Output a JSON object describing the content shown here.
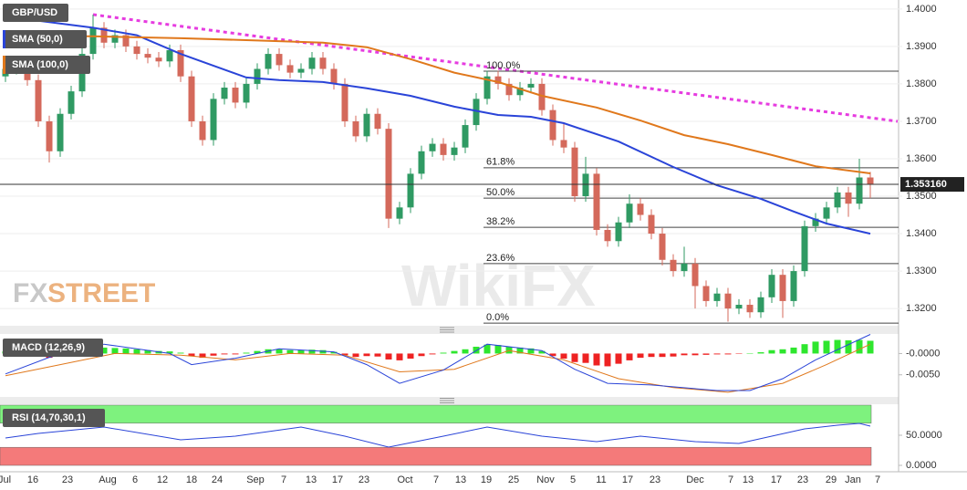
{
  "chart_data": [
    {
      "type": "candlestick",
      "title": "GBP/USD",
      "candles": {
        "open": [
          1.382,
          1.384,
          1.386,
          1.381,
          1.37,
          1.362,
          1.372,
          1.378,
          1.388,
          1.395,
          1.391,
          1.393,
          1.39,
          1.388,
          1.387,
          1.386,
          1.389,
          1.382,
          1.37,
          1.365,
          1.376,
          1.379,
          1.375,
          1.38,
          1.384,
          1.388,
          1.385,
          1.383,
          1.384,
          1.387,
          1.384,
          1.38,
          1.37,
          1.366,
          1.372,
          1.368,
          1.344,
          1.347,
          1.356,
          1.362,
          1.364,
          1.361,
          1.363,
          1.369,
          1.376,
          1.382,
          1.38,
          1.377,
          1.379,
          1.38,
          1.373,
          1.365,
          1.363,
          1.35,
          1.356,
          1.341,
          1.338,
          1.343,
          1.348,
          1.345,
          1.34,
          1.333,
          1.33,
          1.332,
          1.326,
          1.322,
          1.324,
          1.32,
          1.321,
          1.319,
          1.323,
          1.329,
          1.322,
          1.33,
          1.342,
          1.344,
          1.347,
          1.351,
          1.348,
          1.355
        ],
        "high": [
          1.3855,
          1.3875,
          1.3875,
          1.3825,
          1.3715,
          1.3735,
          1.3795,
          1.3895,
          1.3985,
          1.3965,
          1.3945,
          1.3945,
          1.3915,
          1.3895,
          1.3885,
          1.3905,
          1.3905,
          1.3835,
          1.3715,
          1.3775,
          1.3805,
          1.3805,
          1.3815,
          1.3855,
          1.3895,
          1.3895,
          1.3865,
          1.3855,
          1.3885,
          1.3885,
          1.3855,
          1.3815,
          1.3715,
          1.3735,
          1.3735,
          1.3695,
          1.3485,
          1.3575,
          1.3635,
          1.3655,
          1.3655,
          1.3645,
          1.3705,
          1.3775,
          1.3835,
          1.3835,
          1.3815,
          1.3805,
          1.3815,
          1.3815,
          1.3745,
          1.3695,
          1.3645,
          1.3605,
          1.3575,
          1.3425,
          1.3445,
          1.3505,
          1.3495,
          1.3465,
          1.3415,
          1.3345,
          1.3365,
          1.3335,
          1.3275,
          1.3255,
          1.3255,
          1.3225,
          1.3225,
          1.3245,
          1.3305,
          1.3305,
          1.3315,
          1.3435,
          1.3455,
          1.3485,
          1.3525,
          1.3525,
          1.36,
          1.3565
        ],
        "low": [
          1.3805,
          1.3825,
          1.3795,
          1.3685,
          1.359,
          1.3605,
          1.3705,
          1.3765,
          1.3865,
          1.3895,
          1.3895,
          1.3885,
          1.3865,
          1.3855,
          1.3845,
          1.3845,
          1.3805,
          1.3685,
          1.3635,
          1.3635,
          1.3745,
          1.3735,
          1.3735,
          1.3785,
          1.3825,
          1.3835,
          1.3815,
          1.3815,
          1.3825,
          1.3825,
          1.3785,
          1.3685,
          1.3645,
          1.3645,
          1.3665,
          1.3415,
          1.3425,
          1.3455,
          1.3545,
          1.3605,
          1.3595,
          1.3595,
          1.3615,
          1.3675,
          1.3745,
          1.3785,
          1.3755,
          1.3755,
          1.3775,
          1.3715,
          1.3635,
          1.3615,
          1.3485,
          1.3485,
          1.3395,
          1.3365,
          1.3365,
          1.3415,
          1.3435,
          1.3385,
          1.3315,
          1.3285,
          1.3285,
          1.32,
          1.3205,
          1.3205,
          1.3165,
          1.3185,
          1.3175,
          1.3175,
          1.3215,
          1.3175,
          1.3205,
          1.3285,
          1.3405,
          1.3425,
          1.3455,
          1.3445,
          1.3465,
          1.3495
        ],
        "close": [
          1.384,
          1.386,
          1.381,
          1.37,
          1.362,
          1.372,
          1.378,
          1.388,
          1.395,
          1.391,
          1.393,
          1.39,
          1.388,
          1.387,
          1.386,
          1.389,
          1.382,
          1.37,
          1.365,
          1.376,
          1.379,
          1.375,
          1.38,
          1.384,
          1.388,
          1.385,
          1.383,
          1.384,
          1.387,
          1.384,
          1.38,
          1.37,
          1.366,
          1.372,
          1.368,
          1.344,
          1.347,
          1.356,
          1.362,
          1.364,
          1.361,
          1.363,
          1.369,
          1.376,
          1.382,
          1.38,
          1.377,
          1.379,
          1.38,
          1.373,
          1.365,
          1.363,
          1.35,
          1.356,
          1.341,
          1.338,
          1.343,
          1.348,
          1.345,
          1.34,
          1.333,
          1.33,
          1.332,
          1.326,
          1.322,
          1.324,
          1.32,
          1.321,
          1.319,
          1.323,
          1.329,
          1.322,
          1.33,
          1.342,
          1.344,
          1.347,
          1.351,
          1.348,
          1.355,
          1.3532
        ]
      },
      "up_color": "#2f9a63",
      "down_color": "#d4695b",
      "ylim": [
        1.3154,
        1.4024
      ],
      "yticks": [
        {
          "value": 1.4,
          "label": "1.4000"
        },
        {
          "value": 1.39,
          "label": "1.3900"
        },
        {
          "value": 1.38,
          "label": "1.3800"
        },
        {
          "value": 1.37,
          "label": "1.3700"
        },
        {
          "value": 1.36,
          "label": "1.3600"
        },
        {
          "value": 1.35,
          "label": "1.3500"
        },
        {
          "value": 1.34,
          "label": "1.3400"
        },
        {
          "value": 1.33,
          "label": "1.3300"
        },
        {
          "value": 1.32,
          "label": "1.3200"
        }
      ],
      "grid": true,
      "series": [
        {
          "name": "SMA (50,0)",
          "color": "#2a44d8",
          "x": [
            0,
            8,
            12,
            16,
            22,
            25,
            29,
            33,
            37,
            41,
            45,
            48,
            51,
            56,
            61,
            65,
            69,
            72,
            75,
            79
          ],
          "values": [
            1.398,
            1.395,
            1.393,
            1.388,
            1.3817,
            1.381,
            1.3805,
            1.3788,
            1.3768,
            1.3739,
            1.3717,
            1.3712,
            1.3695,
            1.3646,
            1.3578,
            1.3529,
            1.3493,
            1.3459,
            1.3427,
            1.34
          ]
        },
        {
          "name": "SMA (100,0)",
          "color": "#e0781c",
          "x": [
            0,
            8,
            16,
            24,
            29,
            33,
            37,
            41,
            45,
            49,
            54,
            58,
            62,
            66,
            70,
            74,
            79
          ],
          "values": [
            1.3927,
            1.3927,
            1.3922,
            1.3915,
            1.391,
            1.3898,
            1.3866,
            1.383,
            1.3805,
            1.3768,
            1.3737,
            1.3702,
            1.3663,
            1.3639,
            1.361,
            1.358,
            1.3561
          ]
        }
      ],
      "trendline": {
        "color": "#e63ce0",
        "x": [
          8,
          81.5
        ],
        "values": [
          1.3985,
          1.37
        ]
      },
      "fibonacci": [
        {
          "label": "100.0%",
          "value": 1.3834
        },
        {
          "label": "61.8%",
          "value": 1.3576
        },
        {
          "label": "50.0%",
          "value": 1.3495
        },
        {
          "label": "38.2%",
          "value": 1.3417
        },
        {
          "label": "23.6%",
          "value": 1.332
        },
        {
          "label": "0.0%",
          "value": 1.3161
        }
      ],
      "last_price": {
        "value": 1.35316,
        "label": "1.353160"
      },
      "watermarks": [
        "FX",
        "STREET",
        "WikiFX"
      ]
    },
    {
      "type": "macd",
      "title": "MACD (12,26,9)",
      "histogram": {
        "up_color": "#2ee62e",
        "down_color": "#ee2222",
        "values": [
          0.0005,
          0.0008,
          0.0003,
          -0.0006,
          -0.001,
          -0.0006,
          0.0002,
          0.0008,
          0.0012,
          0.0014,
          0.0013,
          0.0012,
          0.001,
          0.0008,
          0.0006,
          0.0005,
          0.0002,
          -0.0006,
          -0.001,
          -0.0005,
          -0.0002,
          -0.0002,
          0.0002,
          0.0006,
          0.001,
          0.001,
          0.0008,
          0.0008,
          0.0009,
          0.0008,
          0.0004,
          -0.0004,
          -0.0008,
          -0.0006,
          -0.0007,
          -0.0014,
          -0.0016,
          -0.0012,
          -0.0006,
          -0.0002,
          0.0002,
          0.0006,
          0.001,
          0.0016,
          0.0021,
          0.002,
          0.0016,
          0.0014,
          0.0012,
          0.0006,
          -0.0006,
          -0.0012,
          -0.002,
          -0.0022,
          -0.0028,
          -0.003,
          -0.0024,
          -0.0016,
          -0.001,
          -0.0008,
          -0.0008,
          -0.0007,
          -0.0004,
          -0.0004,
          -0.0003,
          -0.0002,
          -0.0002,
          -0.0001,
          0.0001,
          0.0003,
          0.0008,
          0.001,
          0.0014,
          0.0022,
          0.0028,
          0.003,
          0.0032,
          0.0031,
          0.0032,
          0.003
        ]
      },
      "macd_line": {
        "color": "#2a44d8",
        "x": [
          0,
          4,
          9,
          15,
          17,
          21,
          25,
          30,
          33,
          36,
          40,
          44,
          49,
          52,
          55,
          59,
          65,
          68,
          71,
          74,
          79
        ],
        "values": [
          -0.0048,
          -0.0009,
          0.0022,
          0.0,
          -0.0026,
          -0.0011,
          0.0011,
          0.0004,
          -0.0026,
          -0.007,
          -0.0039,
          0.0022,
          0.0007,
          -0.0037,
          -0.007,
          -0.0074,
          -0.0087,
          -0.0087,
          -0.0059,
          -0.0015,
          0.0045
        ]
      },
      "signal_line": {
        "color": "#e0781c",
        "x": [
          0,
          5,
          10,
          16,
          21,
          26,
          31,
          36,
          41,
          46,
          51,
          56,
          61,
          66,
          71,
          75,
          79
        ],
        "values": [
          -0.0052,
          -0.0026,
          0.0,
          -0.0004,
          -0.0015,
          0.0,
          -0.0004,
          -0.0043,
          -0.0037,
          0.0007,
          -0.0015,
          -0.0059,
          -0.008,
          -0.0091,
          -0.007,
          -0.0026,
          0.0022
        ]
      },
      "ylim": [
        -0.0102,
        0.0046
      ],
      "yticks": [
        {
          "value": 0,
          "label": "-0.0000"
        },
        {
          "value": -0.005,
          "label": "-0.0050"
        }
      ]
    },
    {
      "type": "rsi",
      "title": "RSI (14,70,30,1)",
      "line": {
        "color": "#2a44d8",
        "x": [
          0,
          3,
          9,
          16,
          21,
          27,
          31,
          35,
          40,
          44,
          49,
          54,
          58,
          63,
          67,
          70,
          73,
          76,
          78,
          79
        ],
        "values": [
          45.5,
          53.0,
          63.6,
          42.4,
          48.5,
          63.6,
          48.5,
          30.3,
          48.5,
          63.6,
          48.5,
          39.4,
          48.5,
          39.4,
          36.4,
          48.5,
          60.6,
          66.7,
          69.7,
          65.2
        ]
      },
      "bands": [
        {
          "from": 70,
          "to": 100,
          "color": "#7ef27e"
        },
        {
          "from": 0,
          "to": 30,
          "color": "#f47a7a"
        }
      ],
      "ylim": [
        -10.6,
        101.5
      ],
      "yticks": [
        {
          "value": 50,
          "label": "50.0000"
        },
        {
          "value": 0,
          "label": "0.0000"
        }
      ],
      "x_labels": [
        "Jul",
        "16",
        "23",
        "Aug",
        "6",
        "12",
        "18",
        "24",
        "Sep",
        "7",
        "13",
        "17",
        "23",
        "Oct",
        "7",
        "13",
        "19",
        "25",
        "Nov",
        "5",
        "11",
        "17",
        "23",
        "Dec",
        "7",
        "13",
        "17",
        "23",
        "29",
        "Jan",
        "7"
      ]
    }
  ]
}
